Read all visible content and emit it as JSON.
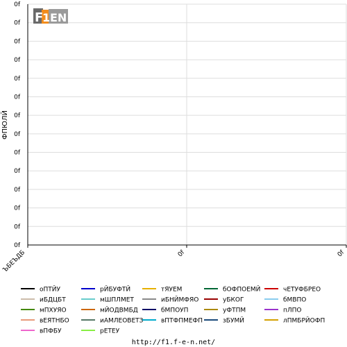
{
  "chart_data": {
    "type": "line",
    "ylabel": "ФПЮЛЙ",
    "x_tick_labels": [
      "ЪБЕЪДБ",
      "0f",
      "0f"
    ],
    "y_tick_labels": [
      "0f",
      "0f",
      "0f",
      "0f",
      "0f",
      "0f",
      "0f",
      "0f",
      "0f",
      "0f",
      "0f",
      "0f",
      "0f",
      "0f"
    ],
    "grid": true,
    "legend_position": "bottom",
    "series": [
      {
        "name": "оПТЙУ",
        "color": "#000000",
        "values": []
      },
      {
        "name": "рЙБУФТЙ",
        "color": "#0000cc",
        "values": []
      },
      {
        "name": "тЯУЕМ",
        "color": "#e6b000",
        "values": []
      },
      {
        "name": "бОФПОЕМЙ",
        "color": "#006633",
        "values": []
      },
      {
        "name": "чЕТУФБРЕО",
        "color": "#cc0000",
        "values": []
      },
      {
        "name": "иБДЦБТ",
        "color": "#ccbbaa",
        "values": []
      },
      {
        "name": "мШПЛМЕТ",
        "color": "#66cccc",
        "values": []
      },
      {
        "name": "иБНЙМФЯО",
        "color": "#888888",
        "values": []
      },
      {
        "name": "уБКОГ",
        "color": "#990000",
        "values": []
      },
      {
        "name": "бМВПО",
        "color": "#88ccee",
        "values": []
      },
      {
        "name": "мПХУЯО",
        "color": "#448800",
        "values": []
      },
      {
        "name": "мЙОДВМБД",
        "color": "#cc6600",
        "values": []
      },
      {
        "name": "бМПОУП",
        "color": "#000066",
        "values": []
      },
      {
        "name": "уФТПМ",
        "color": "#aa8800",
        "values": []
      },
      {
        "name": "пЛПО",
        "color": "#9933cc",
        "values": []
      },
      {
        "name": "вЕЯТНБО",
        "color": "#e89a7a",
        "values": []
      },
      {
        "name": "иАМЛЕОВЕТЗ",
        "color": "#557766",
        "values": []
      },
      {
        "name": "вПТФПМЕФП",
        "color": "#00aacc",
        "values": []
      },
      {
        "name": "зБУМЙ",
        "color": "#1a4a7a",
        "values": []
      },
      {
        "name": "лПМБРЙОФП",
        "color": "#d4a000",
        "values": []
      },
      {
        "name": "вПФБУ",
        "color": "#ee66cc",
        "values": []
      },
      {
        "name": "рЕТЕУ",
        "color": "#88ee44",
        "values": []
      }
    ]
  },
  "logo_text": "F1EN",
  "footer": {
    "url": "http://f1.f-e-n.net/"
  }
}
